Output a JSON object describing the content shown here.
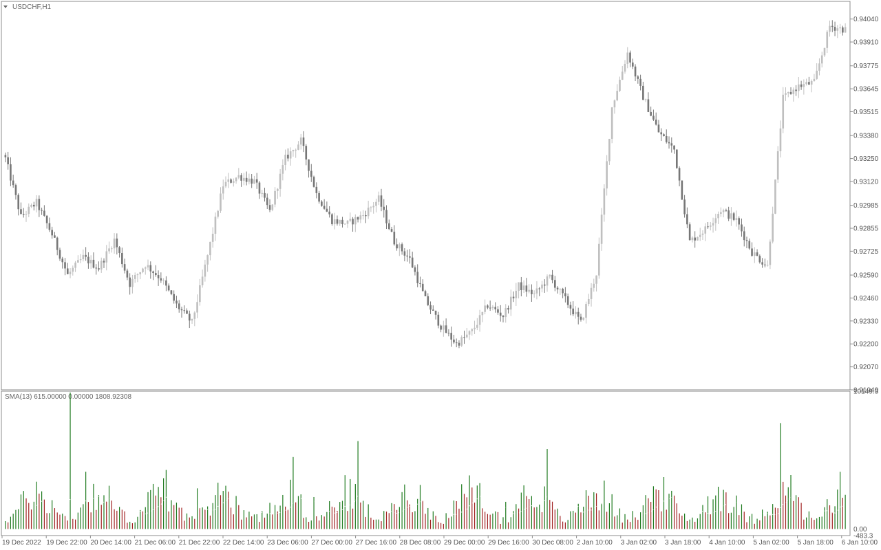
{
  "window": {
    "title": "USDCHF,H1",
    "indicator_label": "SMA(13) 615.00000 0.00000 1808.92308"
  },
  "colors": {
    "bull_candle": "#bfbfbf",
    "bear_candle": "#777777",
    "volume_up": "#1e7a1e",
    "volume_down": "#a02020",
    "sma_line": "#ffffff",
    "border": "#8c8c8c"
  },
  "chart_data": [
    {
      "type": "candlestick",
      "title": "USDCHF,H1",
      "y_ticks": [
        "0.94040",
        "0.93910",
        "0.93775",
        "0.93645",
        "0.93515",
        "0.93380",
        "0.93250",
        "0.93120",
        "0.92985",
        "0.92855",
        "0.92725",
        "0.92590",
        "0.92460",
        "0.92330",
        "0.92200",
        "0.92070",
        "0.91940"
      ],
      "ylim": [
        0.9194,
        0.9414
      ],
      "x_tick_labels": [
        "19 Dec 2022",
        "19 Dec 22:00",
        "20 Dec 14:00",
        "21 Dec 06:00",
        "21 Dec 22:00",
        "22 Dec 14:00",
        "23 Dec 06:00",
        "27 Dec 00:00",
        "27 Dec 16:00",
        "28 Dec 08:00",
        "29 Dec 00:00",
        "29 Dec 16:00",
        "30 Dec 08:00",
        "2 Jan 10:00",
        "3 Jan 02:00",
        "3 Jan 18:00",
        "4 Jan 10:00",
        "5 Jan 02:00",
        "5 Jan 18:00",
        "6 Jan 10:00"
      ],
      "close_path": [
        [
          0,
          0.9325
        ],
        [
          6,
          0.9292
        ],
        [
          12,
          0.93
        ],
        [
          18,
          0.9282
        ],
        [
          24,
          0.9259
        ],
        [
          30,
          0.9269
        ],
        [
          36,
          0.9263
        ],
        [
          42,
          0.9279
        ],
        [
          48,
          0.9254
        ],
        [
          54,
          0.9265
        ],
        [
          60,
          0.9257
        ],
        [
          66,
          0.9242
        ],
        [
          72,
          0.9232
        ],
        [
          78,
          0.927
        ],
        [
          84,
          0.931
        ],
        [
          90,
          0.9315
        ],
        [
          96,
          0.9312
        ],
        [
          102,
          0.9295
        ],
        [
          108,
          0.9325
        ],
        [
          114,
          0.9335
        ],
        [
          120,
          0.9305
        ],
        [
          126,
          0.929
        ],
        [
          132,
          0.9288
        ],
        [
          138,
          0.9293
        ],
        [
          144,
          0.9302
        ],
        [
          150,
          0.9278
        ],
        [
          156,
          0.9268
        ],
        [
          162,
          0.9245
        ],
        [
          168,
          0.923
        ],
        [
          174,
          0.922
        ],
        [
          180,
          0.9227
        ],
        [
          186,
          0.9242
        ],
        [
          192,
          0.9236
        ],
        [
          198,
          0.9253
        ],
        [
          204,
          0.9248
        ],
        [
          210,
          0.9258
        ],
        [
          216,
          0.9245
        ],
        [
          222,
          0.9232
        ],
        [
          228,
          0.926
        ],
        [
          234,
          0.9354
        ],
        [
          240,
          0.9385
        ],
        [
          246,
          0.936
        ],
        [
          252,
          0.934
        ],
        [
          258,
          0.933
        ],
        [
          264,
          0.9278
        ],
        [
          270,
          0.9285
        ],
        [
          276,
          0.9296
        ],
        [
          282,
          0.929
        ],
        [
          288,
          0.9272
        ],
        [
          294,
          0.9264
        ],
        [
          300,
          0.9359
        ],
        [
          306,
          0.9366
        ],
        [
          312,
          0.9368
        ],
        [
          318,
          0.94
        ],
        [
          324,
          0.9398
        ]
      ],
      "volume_panel": {
        "indicator": "SMA(13)",
        "values_shown": [
          615.0,
          0.0,
          1808.92308
        ],
        "y_ticks": [
          "10149.3",
          "0.00",
          "-483.3"
        ],
        "ylim": [
          -483.3,
          10149.3
        ]
      }
    }
  ]
}
